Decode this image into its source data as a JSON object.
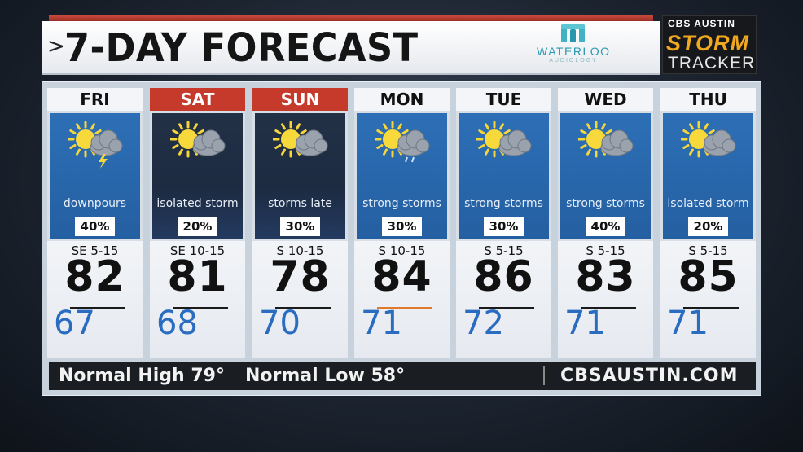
{
  "title": {
    "chevron": ">",
    "text": "7-DAY FORECAST"
  },
  "sponsor": {
    "name": "WATERLOO",
    "sub": "AUDIOLOGY"
  },
  "brand": {
    "top": "CBS AUSTIN",
    "storm": "STORM",
    "tracker": "TRACKER"
  },
  "days": [
    {
      "day": "FRI",
      "highlight": false,
      "icon": "sun-cloud-lightning-icon",
      "condition": "downpours",
      "pop": "40%",
      "wind": "SE 5-15",
      "high": "82",
      "low": "67"
    },
    {
      "day": "SAT",
      "highlight": true,
      "icon": "sun-cloud-icon",
      "condition": "isolated storm",
      "pop": "20%",
      "wind": "SE 10-15",
      "high": "81",
      "low": "68"
    },
    {
      "day": "SUN",
      "highlight": true,
      "icon": "sun-cloud-icon",
      "condition": "storms late",
      "pop": "30%",
      "wind": "S 10-15",
      "high": "78",
      "low": "70"
    },
    {
      "day": "MON",
      "highlight": false,
      "icon": "sun-cloud-rain-icon",
      "condition": "strong storms",
      "pop": "30%",
      "wind": "S 10-15",
      "high": "84",
      "low": "71"
    },
    {
      "day": "TUE",
      "highlight": false,
      "icon": "sun-cloud-icon",
      "condition": "strong storms",
      "pop": "30%",
      "wind": "S 5-15",
      "high": "86",
      "low": "72"
    },
    {
      "day": "WED",
      "highlight": false,
      "icon": "sun-cloud-icon",
      "condition": "strong storms",
      "pop": "40%",
      "wind": "S 5-15",
      "high": "83",
      "low": "71"
    },
    {
      "day": "THU",
      "highlight": false,
      "icon": "sun-cloud-icon",
      "condition": "isolated storm",
      "pop": "20%",
      "wind": "S 5-15",
      "high": "85",
      "low": "71"
    }
  ],
  "footer": {
    "normal_high": "Normal High 79°",
    "normal_low": "Normal Low 58°",
    "site": "CBSAUSTIN.COM"
  },
  "colors": {
    "header_highlight": "#c63a2c",
    "panel_blue": "#2d6fb6",
    "panel_night": "#1d2b42",
    "low_temp": "#2a6cc0"
  }
}
